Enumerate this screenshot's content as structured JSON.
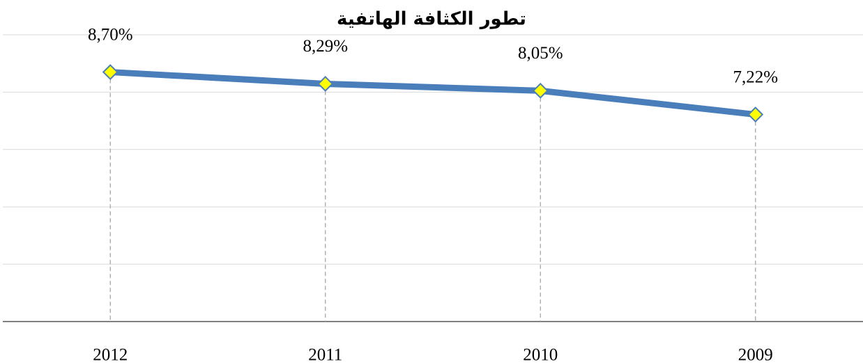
{
  "chart_data": {
    "type": "line",
    "title": "تطور الكثافة الهاتفية",
    "categories": [
      "2012",
      "2011",
      "2010",
      "2009"
    ],
    "series": [
      {
        "name": null,
        "color": "#4a7ebb",
        "marker_color": "#ffff00",
        "values": [
          8.7,
          8.29,
          8.05,
          7.22
        ],
        "value_labels": [
          "8,70%",
          "8,29%",
          "8,05%",
          "7,22%"
        ]
      }
    ],
    "ylim": [
      0,
      10
    ],
    "yticks": [
      0,
      2,
      4,
      6,
      8,
      10
    ],
    "grid": true
  }
}
